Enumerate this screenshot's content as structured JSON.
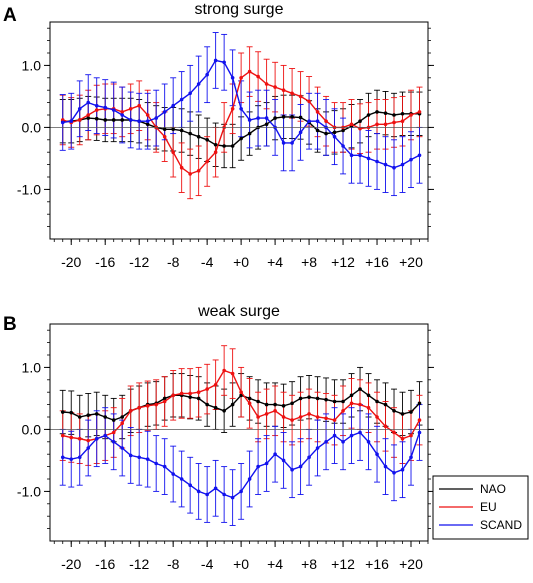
{
  "chart_data": [
    {
      "panel_label": "A",
      "title": "strong surge",
      "type": "line",
      "x": [
        -21,
        -20,
        -19,
        -18,
        -17,
        -16,
        -15,
        -14,
        -13,
        -12,
        -11,
        -10,
        -9,
        -8,
        -7,
        -6,
        -5,
        -4,
        -3,
        -2,
        -1,
        0,
        1,
        2,
        3,
        4,
        5,
        6,
        7,
        8,
        9,
        10,
        11,
        12,
        13,
        14,
        15,
        16,
        17,
        18,
        19,
        20,
        21
      ],
      "xticks": [
        -20,
        -16,
        -12,
        -8,
        -4,
        0,
        4,
        8,
        12,
        16,
        20
      ],
      "xtick_labels": [
        "-20",
        "-16",
        "-12",
        "-8",
        "-4",
        "+0",
        "+4",
        "+8",
        "+12",
        "+16",
        "+20"
      ],
      "xlim": [
        -22.5,
        22
      ],
      "yticks": [
        -1.0,
        0.0,
        1.0
      ],
      "ytick_labels": [
        "-1.0",
        "0.0",
        "1.0"
      ],
      "ylim": [
        -1.8,
        1.7
      ],
      "series": [
        {
          "name": "NAO",
          "color": "#000000",
          "values": [
            0.1,
            0.1,
            0.12,
            0.15,
            0.14,
            0.12,
            0.12,
            0.12,
            0.12,
            0.1,
            0.05,
            0.0,
            -0.03,
            -0.03,
            -0.05,
            -0.1,
            -0.15,
            -0.2,
            -0.28,
            -0.3,
            -0.3,
            -0.18,
            -0.1,
            0.0,
            0.05,
            0.15,
            0.17,
            0.17,
            0.16,
            0.08,
            -0.05,
            -0.1,
            -0.08,
            -0.05,
            0.02,
            0.1,
            0.2,
            0.25,
            0.23,
            0.2,
            0.22,
            0.22,
            0.22
          ],
          "err": [
            0.35,
            0.35,
            0.35,
            0.35,
            0.35,
            0.35,
            0.35,
            0.35,
            0.35,
            0.35,
            0.35,
            0.35,
            0.35,
            0.35,
            0.35,
            0.35,
            0.35,
            0.35,
            0.35,
            0.35,
            0.35,
            0.35,
            0.35,
            0.35,
            0.35,
            0.35,
            0.35,
            0.35,
            0.35,
            0.35,
            0.35,
            0.35,
            0.35,
            0.35,
            0.35,
            0.35,
            0.35,
            0.35,
            0.35,
            0.35,
            0.35,
            0.35,
            0.35
          ]
        },
        {
          "name": "EU",
          "color": "#ee1111",
          "values": [
            0.12,
            0.08,
            0.12,
            0.2,
            0.28,
            0.3,
            0.3,
            0.25,
            0.3,
            0.35,
            0.2,
            0.0,
            -0.15,
            -0.4,
            -0.65,
            -0.75,
            -0.7,
            -0.55,
            -0.4,
            0.0,
            0.3,
            0.8,
            0.9,
            0.82,
            0.7,
            0.65,
            0.6,
            0.55,
            0.5,
            0.42,
            0.25,
            0.1,
            0.0,
            0.0,
            0.05,
            -0.02,
            0.0,
            0.05,
            0.05,
            0.08,
            0.1,
            0.2,
            0.25
          ],
          "err": [
            0.4,
            0.4,
            0.4,
            0.4,
            0.4,
            0.4,
            0.4,
            0.4,
            0.4,
            0.4,
            0.4,
            0.4,
            0.4,
            0.4,
            0.4,
            0.4,
            0.4,
            0.4,
            0.4,
            0.4,
            0.4,
            0.4,
            0.4,
            0.4,
            0.4,
            0.4,
            0.4,
            0.4,
            0.4,
            0.4,
            0.4,
            0.4,
            0.4,
            0.4,
            0.4,
            0.4,
            0.4,
            0.4,
            0.4,
            0.4,
            0.4,
            0.4,
            0.4
          ]
        },
        {
          "name": "SCAND",
          "color": "#1111ee",
          "values": [
            0.08,
            0.1,
            0.3,
            0.4,
            0.35,
            0.32,
            0.28,
            0.2,
            0.12,
            0.1,
            0.1,
            0.15,
            0.25,
            0.35,
            0.45,
            0.55,
            0.7,
            0.85,
            1.08,
            1.05,
            0.8,
            0.3,
            0.12,
            0.15,
            0.15,
            0.0,
            -0.25,
            -0.25,
            -0.08,
            0.1,
            0.1,
            0.0,
            -0.15,
            -0.3,
            -0.45,
            -0.45,
            -0.5,
            -0.55,
            -0.6,
            -0.65,
            -0.6,
            -0.52,
            -0.45
          ],
          "err": [
            0.45,
            0.45,
            0.45,
            0.45,
            0.45,
            0.45,
            0.45,
            0.45,
            0.45,
            0.45,
            0.45,
            0.45,
            0.45,
            0.45,
            0.45,
            0.45,
            0.45,
            0.45,
            0.45,
            0.45,
            0.45,
            0.45,
            0.45,
            0.45,
            0.45,
            0.45,
            0.45,
            0.45,
            0.45,
            0.45,
            0.45,
            0.45,
            0.45,
            0.45,
            0.45,
            0.45,
            0.45,
            0.45,
            0.45,
            0.45,
            0.45,
            0.45,
            0.45
          ]
        }
      ]
    },
    {
      "panel_label": "B",
      "title": "weak surge",
      "type": "line",
      "x": [
        -21,
        -20,
        -19,
        -18,
        -17,
        -16,
        -15,
        -14,
        -13,
        -12,
        -11,
        -10,
        -9,
        -8,
        -7,
        -6,
        -5,
        -4,
        -3,
        -2,
        -1,
        0,
        1,
        2,
        3,
        4,
        5,
        6,
        7,
        8,
        9,
        10,
        11,
        12,
        13,
        14,
        15,
        16,
        17,
        18,
        19,
        20,
        21
      ],
      "xticks": [
        -20,
        -16,
        -12,
        -8,
        -4,
        0,
        4,
        8,
        12,
        16,
        20
      ],
      "xtick_labels": [
        "-20",
        "-16",
        "-12",
        "-8",
        "-4",
        "+0",
        "+4",
        "+8",
        "+12",
        "+16",
        "+20"
      ],
      "xlim": [
        -22.5,
        22
      ],
      "yticks": [
        -1.0,
        0.0,
        1.0
      ],
      "ytick_labels": [
        "-1.0",
        "0.0",
        "1.0"
      ],
      "ylim": [
        -1.8,
        1.7
      ],
      "series": [
        {
          "name": "NAO",
          "color": "#000000",
          "values": [
            0.28,
            0.27,
            0.2,
            0.23,
            0.25,
            0.2,
            0.15,
            0.2,
            0.3,
            0.35,
            0.4,
            0.42,
            0.5,
            0.55,
            0.55,
            0.52,
            0.5,
            0.4,
            0.35,
            0.3,
            0.4,
            0.55,
            0.5,
            0.45,
            0.4,
            0.4,
            0.38,
            0.42,
            0.5,
            0.52,
            0.5,
            0.48,
            0.45,
            0.45,
            0.55,
            0.65,
            0.55,
            0.45,
            0.4,
            0.3,
            0.25,
            0.28,
            0.42
          ],
          "err": [
            0.35,
            0.35,
            0.35,
            0.35,
            0.35,
            0.35,
            0.35,
            0.35,
            0.35,
            0.35,
            0.35,
            0.35,
            0.35,
            0.35,
            0.35,
            0.35,
            0.35,
            0.35,
            0.35,
            0.35,
            0.35,
            0.35,
            0.35,
            0.35,
            0.35,
            0.35,
            0.35,
            0.35,
            0.35,
            0.35,
            0.35,
            0.35,
            0.35,
            0.35,
            0.35,
            0.35,
            0.35,
            0.35,
            0.35,
            0.35,
            0.35,
            0.35,
            0.35
          ]
        },
        {
          "name": "EU",
          "color": "#ee1111",
          "values": [
            -0.1,
            -0.13,
            -0.15,
            -0.18,
            -0.15,
            -0.1,
            -0.05,
            0.1,
            0.3,
            0.35,
            0.38,
            0.4,
            0.45,
            0.55,
            0.58,
            0.58,
            0.6,
            0.65,
            0.72,
            0.95,
            0.9,
            0.6,
            0.42,
            0.2,
            0.25,
            0.3,
            0.2,
            0.15,
            0.2,
            0.25,
            0.2,
            0.18,
            0.15,
            0.3,
            0.42,
            0.4,
            0.35,
            0.2,
            0.05,
            -0.05,
            -0.15,
            -0.1,
            0.15
          ],
          "err": [
            0.4,
            0.4,
            0.4,
            0.4,
            0.4,
            0.4,
            0.4,
            0.4,
            0.4,
            0.4,
            0.4,
            0.4,
            0.4,
            0.4,
            0.4,
            0.4,
            0.4,
            0.4,
            0.4,
            0.4,
            0.4,
            0.4,
            0.4,
            0.4,
            0.4,
            0.4,
            0.4,
            0.4,
            0.4,
            0.4,
            0.4,
            0.4,
            0.4,
            0.4,
            0.4,
            0.4,
            0.4,
            0.4,
            0.4,
            0.4,
            0.4,
            0.4,
            0.4
          ]
        },
        {
          "name": "SCAND",
          "color": "#1111ee",
          "values": [
            -0.45,
            -0.48,
            -0.45,
            -0.3,
            -0.15,
            -0.1,
            -0.2,
            -0.3,
            -0.42,
            -0.45,
            -0.48,
            -0.55,
            -0.6,
            -0.72,
            -0.8,
            -0.9,
            -1.0,
            -1.05,
            -0.95,
            -1.05,
            -1.1,
            -1.0,
            -0.8,
            -0.6,
            -0.55,
            -0.4,
            -0.5,
            -0.65,
            -0.6,
            -0.45,
            -0.3,
            -0.2,
            -0.1,
            -0.2,
            -0.1,
            -0.05,
            -0.2,
            -0.4,
            -0.6,
            -0.7,
            -0.65,
            -0.45,
            -0.05
          ],
          "err": [
            0.45,
            0.45,
            0.45,
            0.45,
            0.45,
            0.45,
            0.45,
            0.45,
            0.45,
            0.45,
            0.45,
            0.45,
            0.45,
            0.45,
            0.45,
            0.45,
            0.45,
            0.45,
            0.45,
            0.45,
            0.45,
            0.45,
            0.45,
            0.45,
            0.45,
            0.45,
            0.45,
            0.45,
            0.45,
            0.45,
            0.45,
            0.45,
            0.45,
            0.45,
            0.45,
            0.45,
            0.45,
            0.45,
            0.45,
            0.45,
            0.45,
            0.45,
            0.45
          ]
        }
      ]
    }
  ],
  "legend": {
    "placement": "bottom-right",
    "entries": [
      {
        "label": "NAO",
        "color": "#000000"
      },
      {
        "label": "EU",
        "color": "#ee1111"
      },
      {
        "label": "SCAND",
        "color": "#1111ee"
      }
    ]
  }
}
